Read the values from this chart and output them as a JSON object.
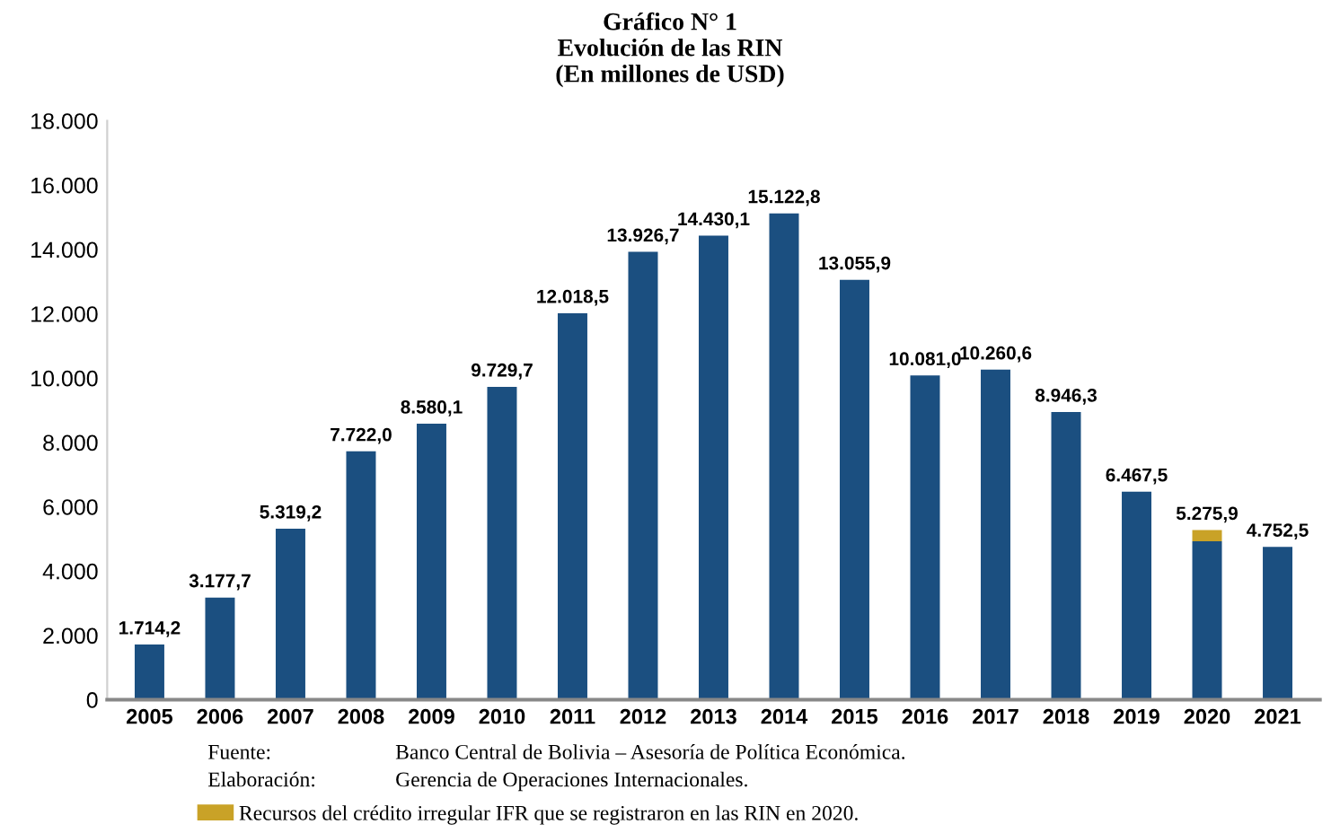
{
  "chart_data": {
    "type": "bar",
    "title": "Gráfico N° 1\nEvolución de las RIN\n(En millones de USD)",
    "categories": [
      "2005",
      "2006",
      "2007",
      "2008",
      "2009",
      "2010",
      "2011",
      "2012",
      "2013",
      "2014",
      "2015",
      "2016",
      "2017",
      "2018",
      "2019",
      "2020",
      "2021"
    ],
    "stacked": true,
    "series": [
      {
        "color": "#1b4f80",
        "values": [
          1714.2,
          3177.7,
          5319.2,
          7722.0,
          8580.1,
          9729.7,
          12018.5,
          13926.7,
          14430.1,
          15122.8,
          13055.9,
          10081.0,
          10260.6,
          8946.3,
          6467.5,
          4929.2,
          4752.5
        ]
      },
      {
        "name": "Recursos del crédito irregular IFR que se registraron en las RIN en 2020.",
        "color": "#c9a227",
        "values": [
          null,
          null,
          null,
          null,
          null,
          null,
          null,
          null,
          null,
          null,
          null,
          null,
          null,
          null,
          null,
          346.7,
          null
        ]
      }
    ],
    "totals": [
      "1.714,2",
      "3.177,7",
      "5.319,2",
      "7.722,0",
      "8.580,1",
      "9.729,7",
      "12.018,5",
      "13.926,7",
      "14.430,1",
      "15.122,8",
      "13.055,9",
      "10.081,0",
      "10.260,6",
      "8.946,3",
      "6.467,5",
      "5.275,9",
      "4.752,5"
    ],
    "ylim": [
      0,
      18000
    ],
    "yticks": [
      {
        "value": 0,
        "label": "0"
      },
      {
        "value": 2000,
        "label": "2.000"
      },
      {
        "value": 4000,
        "label": "4.000"
      },
      {
        "value": 6000,
        "label": "6.000"
      },
      {
        "value": 8000,
        "label": "8.000"
      },
      {
        "value": 10000,
        "label": "10.000"
      },
      {
        "value": 12000,
        "label": "12.000"
      },
      {
        "value": 14000,
        "label": "14.000"
      },
      {
        "value": 16000,
        "label": "16.000"
      },
      {
        "value": 18000,
        "label": "18.000"
      }
    ],
    "grid": false,
    "legend": "bottom left",
    "annotations": [
      "Fuente:",
      "Banco Central de Bolivia – Asesoría de Política Económica.",
      "Elaboración:",
      "Gerencia de Operaciones Internacionales."
    ]
  }
}
